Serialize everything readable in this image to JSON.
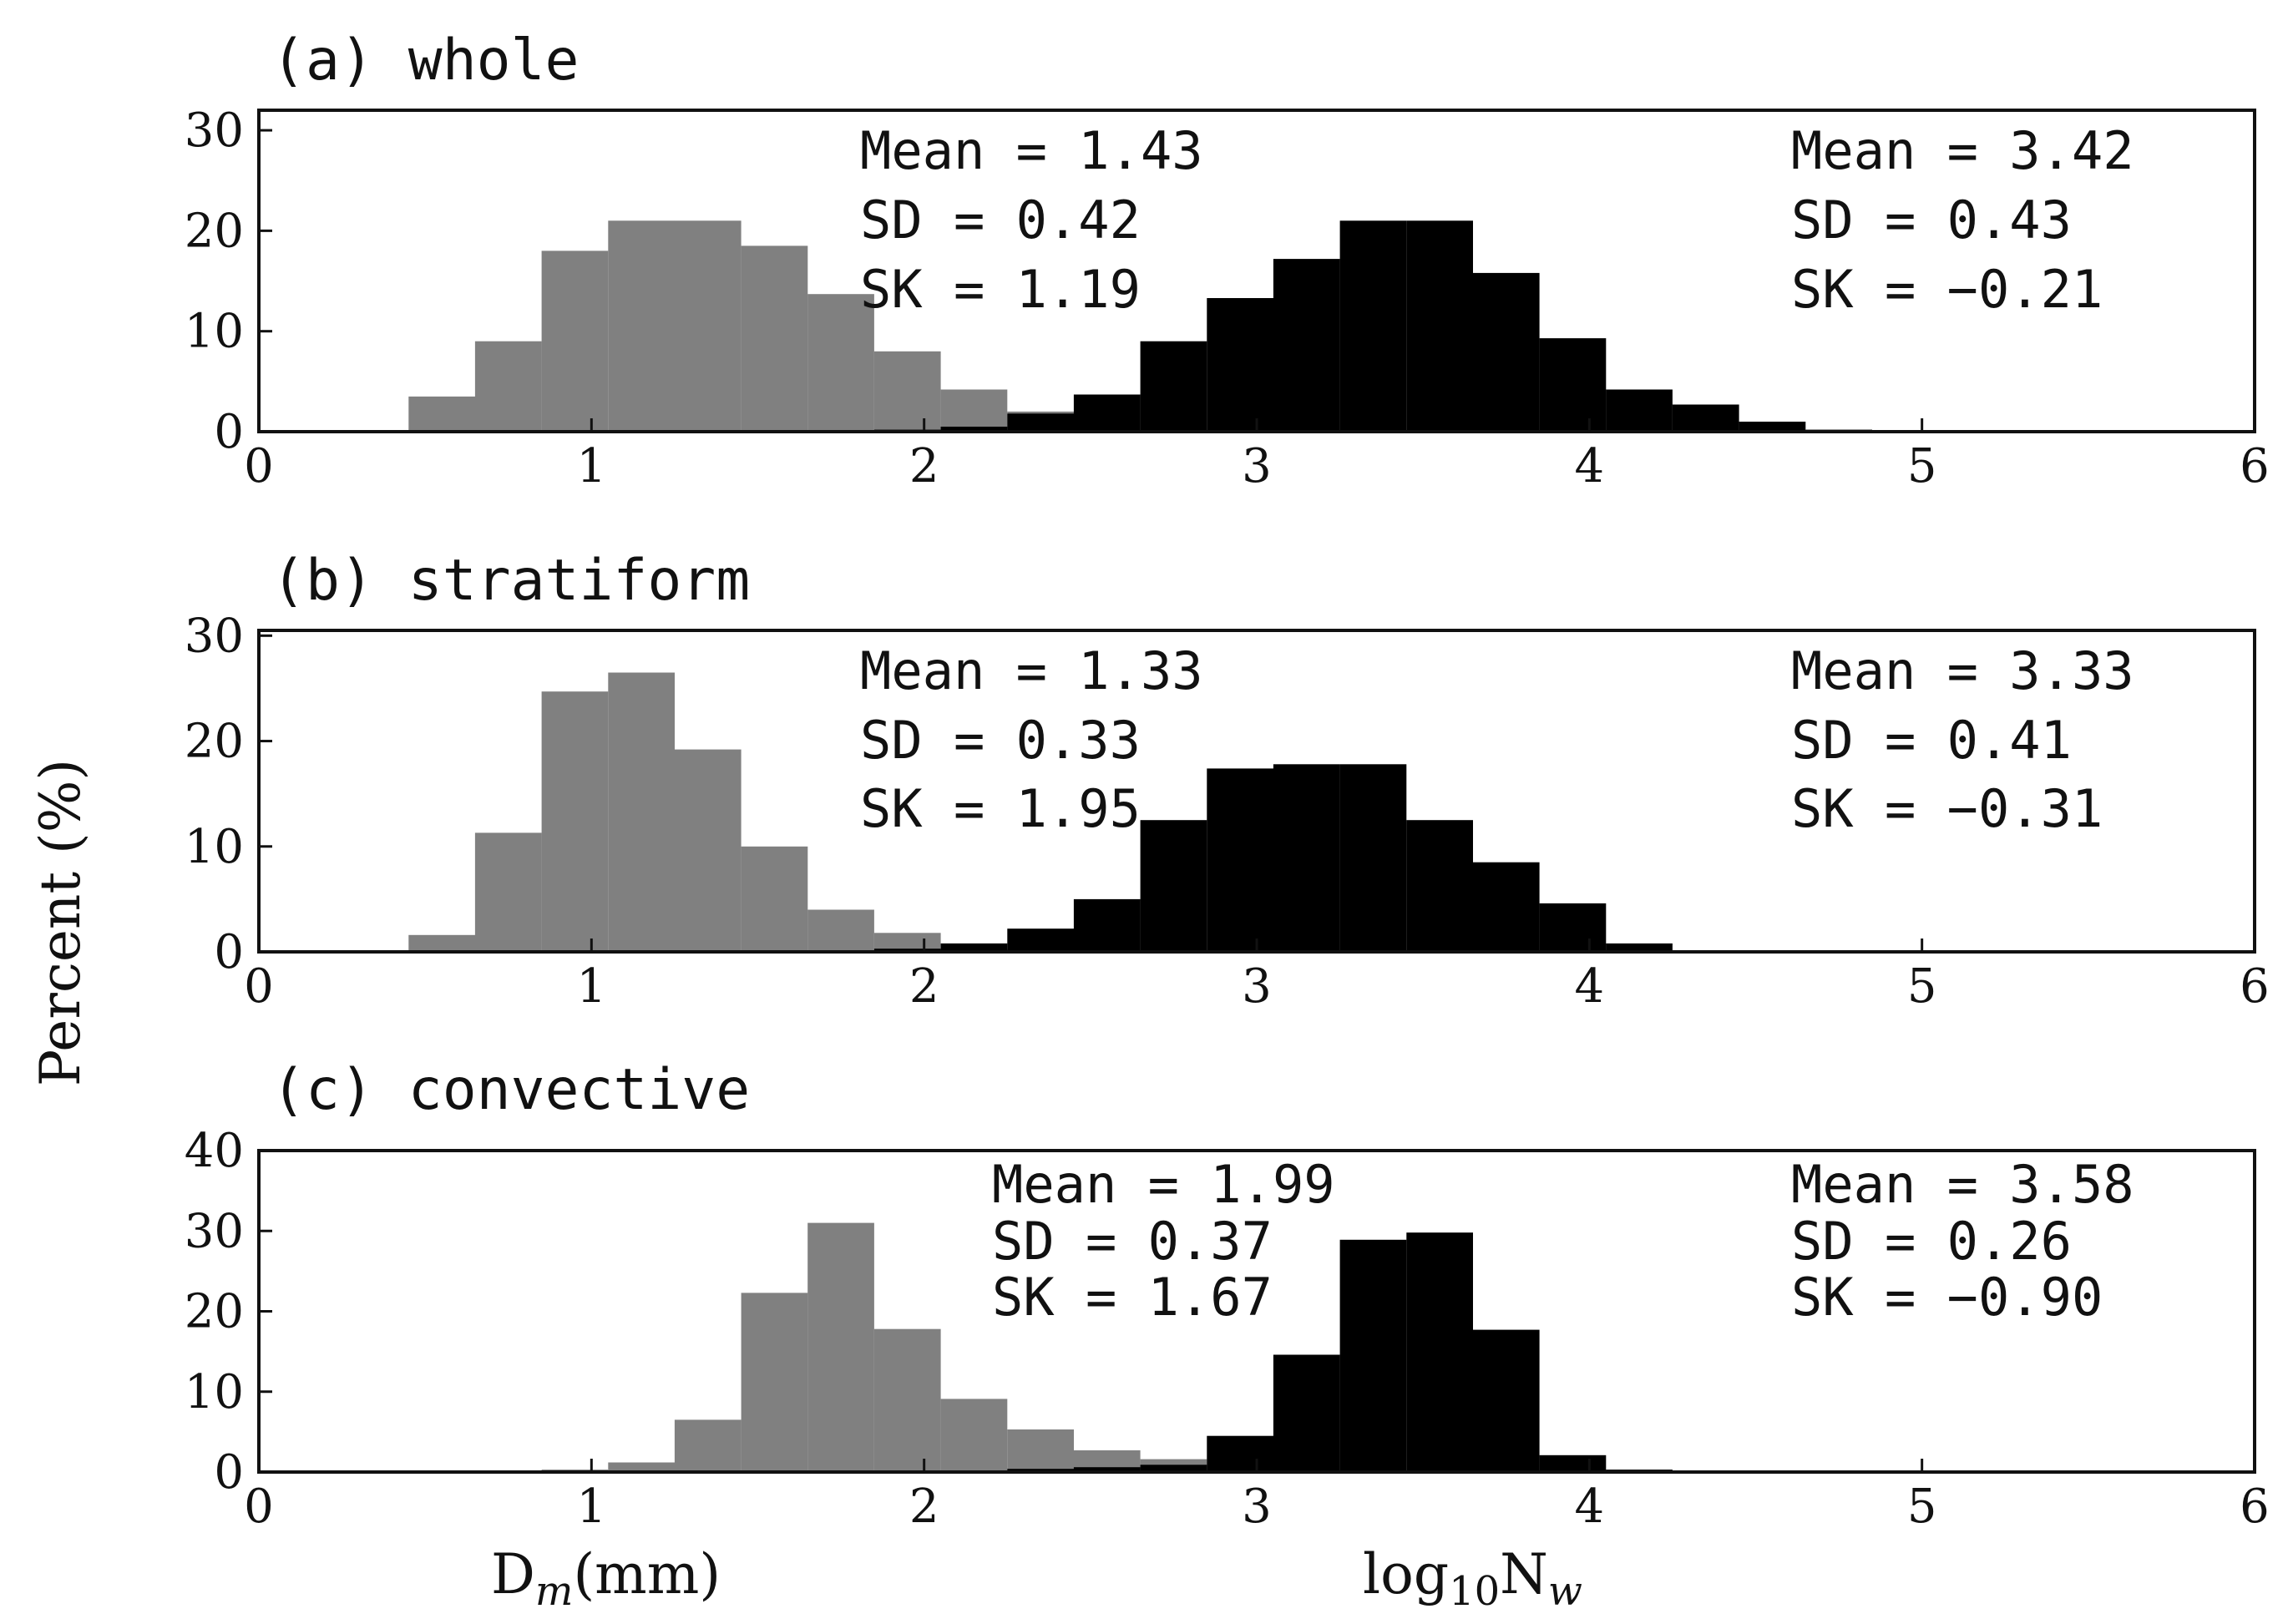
{
  "figure": {
    "ylabel": "Percent (%)",
    "xlabel_dm": "D",
    "xlabel_dm_sub": "m",
    "xlabel_dm_rest": "(mm)",
    "xlabel_nw": "log",
    "xlabel_nw_sub1": "10",
    "xlabel_nw_mid": "N",
    "xlabel_nw_sub2": "w",
    "gray_color": "#808080",
    "black_color": "#000000"
  },
  "chart_data": [
    {
      "type": "bar",
      "title": "(a) whole",
      "xlim": [
        0,
        6
      ],
      "ylim": [
        0,
        32
      ],
      "xticks": [
        "0",
        "1",
        "2",
        "3",
        "4",
        "5",
        "6"
      ],
      "yticks": [
        "0",
        "10",
        "20",
        "30"
      ],
      "bin_width": 0.2,
      "series": [
        {
          "color": "#808080",
          "bins_left": [
            0.45,
            0.65,
            0.85,
            1.05,
            1.25,
            1.45,
            1.65,
            1.85,
            2.05,
            2.25
          ],
          "values": [
            3.5,
            9,
            18,
            21,
            21,
            18.5,
            13.7,
            8,
            4.2,
            2
          ]
        },
        {
          "color": "#000000",
          "bins_left": [
            1.85,
            2.05,
            2.25,
            2.45,
            2.65,
            2.85,
            3.05,
            3.25,
            3.45,
            3.65,
            3.85,
            4.05,
            4.25,
            4.45,
            4.65
          ],
          "values": [
            0.2,
            0.5,
            1.8,
            3.7,
            9,
            13.3,
            17.2,
            21,
            21,
            15.8,
            9.3,
            4.2,
            2.7,
            1,
            0.2
          ]
        }
      ],
      "stats": [
        {
          "mean": "Mean = 1.43",
          "sd": "SD = 0.42",
          "sk": "SK = 1.19"
        },
        {
          "mean": "Mean = 3.42",
          "sd": "SD = 0.43",
          "sk": "SK = −0.21"
        }
      ]
    },
    {
      "type": "bar",
      "title": "(b) stratiform",
      "xlim": [
        0,
        6
      ],
      "ylim": [
        0,
        30.5
      ],
      "xticks": [
        "0",
        "1",
        "2",
        "3",
        "4",
        "5",
        "6"
      ],
      "yticks": [
        "0",
        "10",
        "20",
        "30"
      ],
      "bin_width": 0.2,
      "series": [
        {
          "color": "#808080",
          "bins_left": [
            0.45,
            0.65,
            0.85,
            1.05,
            1.25,
            1.45,
            1.65,
            1.85,
            2.05
          ],
          "values": [
            1.6,
            11.3,
            24.7,
            26.5,
            19.2,
            10,
            4,
            1.8,
            0.3
          ]
        },
        {
          "color": "#000000",
          "bins_left": [
            1.85,
            2.05,
            2.25,
            2.45,
            2.65,
            2.85,
            3.05,
            3.25,
            3.45,
            3.65,
            3.85,
            4.05
          ],
          "values": [
            0.3,
            0.8,
            2.2,
            5,
            12.5,
            17.4,
            17.8,
            17.8,
            12.5,
            8.5,
            4.6,
            0.8
          ]
        }
      ],
      "stats": [
        {
          "mean": "Mean = 1.33",
          "sd": "SD = 0.33",
          "sk": "SK = 1.95"
        },
        {
          "mean": "Mean = 3.33",
          "sd": "SD = 0.41",
          "sk": "SK = −0.31"
        }
      ]
    },
    {
      "type": "bar",
      "title": "(c) convective",
      "xlim": [
        0,
        6
      ],
      "ylim": [
        0,
        40
      ],
      "xticks": [
        "0",
        "1",
        "2",
        "3",
        "4",
        "5",
        "6"
      ],
      "yticks": [
        "0",
        "10",
        "20",
        "30",
        "40"
      ],
      "bin_width": 0.2,
      "series": [
        {
          "color": "#808080",
          "bins_left": [
            0.85,
            1.05,
            1.25,
            1.45,
            1.65,
            1.85,
            2.05,
            2.25,
            2.45,
            2.65
          ],
          "values": [
            0.3,
            1.2,
            6.5,
            22.3,
            31,
            17.8,
            9.1,
            5.3,
            2.7,
            1.6
          ]
        },
        {
          "color": "#000000",
          "bins_left": [
            2.25,
            2.45,
            2.65,
            2.85,
            3.05,
            3.25,
            3.45,
            3.65,
            3.85,
            4.05
          ],
          "values": [
            0.4,
            0.6,
            0.9,
            4.5,
            14.6,
            28.9,
            29.8,
            17.7,
            2.1,
            0.3
          ]
        }
      ],
      "stats": [
        {
          "mean": "Mean = 1.99",
          "sd": "SD = 0.37",
          "sk": "SK = 1.67"
        },
        {
          "mean": "Mean = 3.58",
          "sd": "SD = 0.26",
          "sk": "SK = −0.90"
        }
      ]
    }
  ]
}
